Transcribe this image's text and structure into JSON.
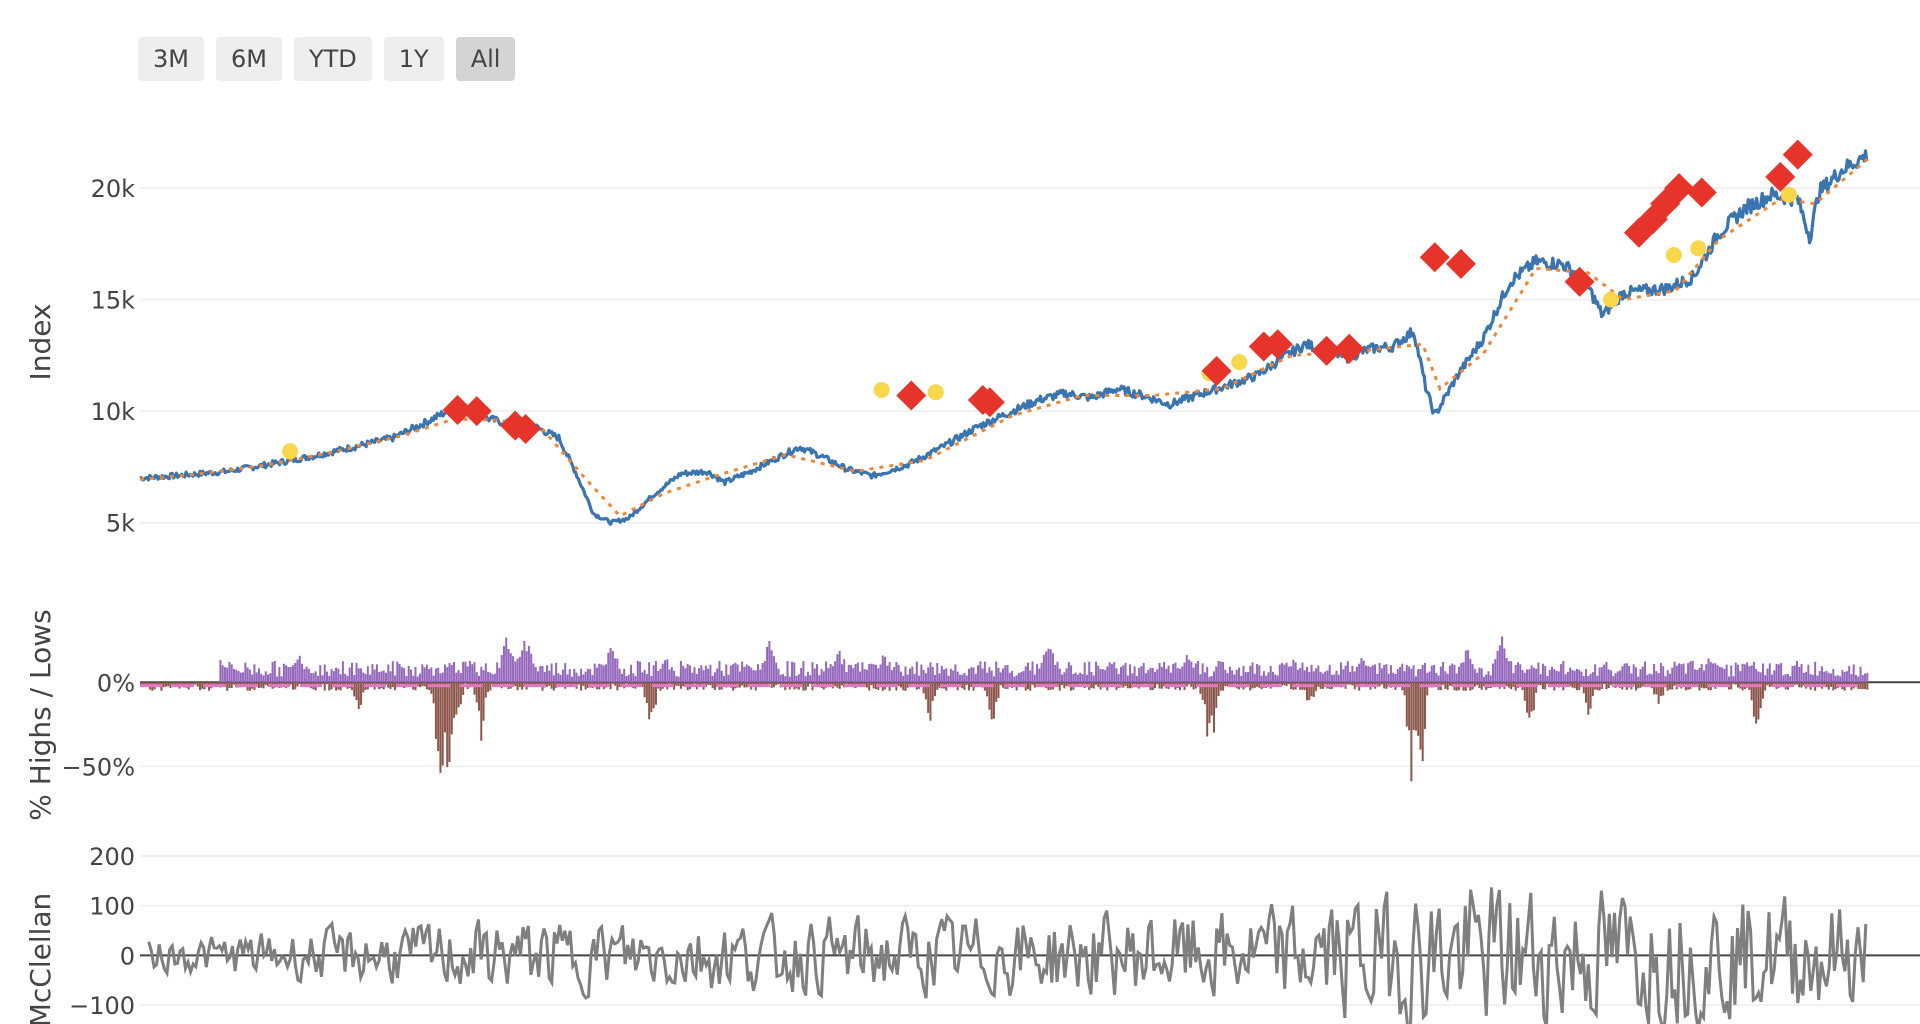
{
  "range_selector": {
    "buttons": [
      {
        "label": "3M",
        "active": false
      },
      {
        "label": "6M",
        "active": false
      },
      {
        "label": "YTD",
        "active": false
      },
      {
        "label": "1Y",
        "active": false
      },
      {
        "label": "All",
        "active": true
      }
    ]
  },
  "colors": {
    "index_line": "#3b75af",
    "trend_line": "#ef8636",
    "sell_marker": "#e6342a",
    "buy_marker": "#f9d74c",
    "new_highs": "#9467bd",
    "new_lows": "#8c564b",
    "zero_dash": "#e377c2",
    "mcclellan": "#7f7f7f",
    "grid": "#eeeeee"
  },
  "chart_data": [
    {
      "type": "line",
      "panel": "index",
      "ylabel": "Index",
      "ylim": [
        4000,
        23500
      ],
      "y_ticks": [
        {
          "v": 5000,
          "label": "5k"
        },
        {
          "v": 10000,
          "label": "10k"
        },
        {
          "v": 15000,
          "label": "15k"
        },
        {
          "v": 20000,
          "label": "20k"
        }
      ],
      "x_range": [
        0,
        1000
      ],
      "series": [
        {
          "key": "index",
          "points": [
            [
              0,
              7000
            ],
            [
              20,
              7100
            ],
            [
              50,
              7300
            ],
            [
              80,
              7700
            ],
            [
              100,
              8000
            ],
            [
              120,
              8350
            ],
            [
              145,
              8800
            ],
            [
              160,
              9350
            ],
            [
              175,
              9950
            ],
            [
              188,
              10050
            ],
            [
              198,
              9700
            ],
            [
              210,
              9450
            ],
            [
              225,
              9350
            ],
            [
              240,
              8800
            ],
            [
              250,
              7200
            ],
            [
              260,
              5400
            ],
            [
              270,
              5000
            ],
            [
              280,
              5200
            ],
            [
              295,
              6300
            ],
            [
              310,
              7200
            ],
            [
              325,
              7300
            ],
            [
              335,
              6800
            ],
            [
              350,
              7300
            ],
            [
              365,
              7900
            ],
            [
              378,
              8400
            ],
            [
              390,
              8000
            ],
            [
              405,
              7400
            ],
            [
              420,
              7100
            ],
            [
              440,
              7600
            ],
            [
              460,
              8400
            ],
            [
              480,
              9300
            ],
            [
              500,
              10000
            ],
            [
              515,
              10500
            ],
            [
              530,
              10800
            ],
            [
              545,
              10600
            ],
            [
              560,
              11000
            ],
            [
              575,
              10700
            ],
            [
              590,
              10300
            ],
            [
              605,
              10700
            ],
            [
              625,
              11200
            ],
            [
              640,
              11600
            ],
            [
              655,
              12400
            ],
            [
              668,
              13000
            ],
            [
              680,
              12700
            ],
            [
              692,
              12400
            ],
            [
              705,
              12800
            ],
            [
              718,
              12900
            ],
            [
              730,
              13600
            ],
            [
              737,
              11000
            ],
            [
              742,
              9800
            ],
            [
              755,
              11600
            ],
            [
              770,
              13300
            ],
            [
              785,
              15800
            ],
            [
              800,
              16700
            ],
            [
              815,
              16600
            ],
            [
              828,
              15900
            ],
            [
              838,
              14300
            ],
            [
              850,
              15300
            ],
            [
              862,
              15400
            ],
            [
              875,
              15500
            ],
            [
              890,
              16000
            ],
            [
              905,
              18000
            ],
            [
              920,
              19100
            ],
            [
              935,
              19700
            ],
            [
              950,
              19500
            ],
            [
              957,
              17800
            ],
            [
              962,
              19800
            ],
            [
              975,
              20800
            ],
            [
              990,
              21500
            ]
          ]
        },
        {
          "key": "trend",
          "points": [
            [
              0,
              6950
            ],
            [
              30,
              7150
            ],
            [
              70,
              7550
            ],
            [
              110,
              8150
            ],
            [
              150,
              8900
            ],
            [
              180,
              9650
            ],
            [
              205,
              9600
            ],
            [
              230,
              9250
            ],
            [
              255,
              7000
            ],
            [
              275,
              5300
            ],
            [
              300,
              6300
            ],
            [
              330,
              7100
            ],
            [
              370,
              8050
            ],
            [
              410,
              7300
            ],
            [
              450,
              7800
            ],
            [
              500,
              9800
            ],
            [
              540,
              10700
            ],
            [
              580,
              10700
            ],
            [
              620,
              11000
            ],
            [
              660,
              12500
            ],
            [
              700,
              12700
            ],
            [
              735,
              13000
            ],
            [
              745,
              11000
            ],
            [
              770,
              12600
            ],
            [
              800,
              16400
            ],
            [
              830,
              16200
            ],
            [
              850,
              15000
            ],
            [
              880,
              15400
            ],
            [
              905,
              17700
            ],
            [
              940,
              19500
            ],
            [
              960,
              19300
            ],
            [
              990,
              21300
            ]
          ]
        }
      ],
      "markers": {
        "sell": [
          [
            182,
            10050
          ],
          [
            193,
            10000
          ],
          [
            215,
            9350
          ],
          [
            221,
            9200
          ],
          [
            442,
            10700
          ],
          [
            483,
            10500
          ],
          [
            487,
            10400
          ],
          [
            617,
            11800
          ],
          [
            644,
            12900
          ],
          [
            652,
            13000
          ],
          [
            680,
            12700
          ],
          [
            693,
            12800
          ],
          [
            742,
            16900
          ],
          [
            757,
            16600
          ],
          [
            825,
            15800
          ],
          [
            859,
            18000
          ],
          [
            867,
            18600
          ],
          [
            874,
            19300
          ],
          [
            882,
            20000
          ],
          [
            895,
            19800
          ],
          [
            940,
            20500
          ],
          [
            950,
            21500
          ]
        ],
        "buy": [
          [
            86,
            8200
          ],
          [
            425,
            10950
          ],
          [
            456,
            10850
          ],
          [
            613,
            11700
          ],
          [
            630,
            12200
          ],
          [
            843,
            15000
          ],
          [
            879,
            17000
          ],
          [
            893,
            17300
          ],
          [
            945,
            19700
          ]
        ]
      }
    },
    {
      "type": "bar",
      "panel": "highs_lows",
      "ylabel": "% Highs / Lows",
      "ylim": [
        -70,
        40
      ],
      "y_ticks": [
        {
          "v": 0,
          "label": "0%"
        },
        {
          "v": -50,
          "label": "−50%"
        }
      ],
      "series": [
        {
          "name": "new highs",
          "range": [
            45,
            990
          ],
          "baseline": 8,
          "spikes": [
            [
              45,
              20
            ],
            [
              90,
              18
            ],
            [
              210,
              30
            ],
            [
              220,
              35
            ],
            [
              270,
              25
            ],
            [
              300,
              18
            ],
            [
              360,
              25
            ],
            [
              400,
              22
            ],
            [
              425,
              20
            ],
            [
              520,
              28
            ],
            [
              600,
              18
            ],
            [
              660,
              15
            ],
            [
              700,
              20
            ],
            [
              760,
              22
            ],
            [
              780,
              30
            ],
            [
              850,
              15
            ],
            [
              900,
              20
            ],
            [
              920,
              18
            ]
          ]
        },
        {
          "name": "new lows",
          "range": [
            0,
            990
          ],
          "baseline": -3,
          "spikes": [
            [
              125,
              -20
            ],
            [
              170,
              -45
            ],
            [
              172,
              -62
            ],
            [
              176,
              -60
            ],
            [
              181,
              -35
            ],
            [
              195,
              -38
            ],
            [
              292,
              -38
            ],
            [
              452,
              -32
            ],
            [
              488,
              -30
            ],
            [
              611,
              -35
            ],
            [
              614,
              -40
            ],
            [
              670,
              -18
            ],
            [
              728,
              -60
            ],
            [
              733,
              -68
            ],
            [
              796,
              -35
            ],
            [
              830,
              -24
            ],
            [
              870,
              -20
            ],
            [
              926,
              -35
            ]
          ]
        },
        {
          "name": "zero line",
          "dash_y": -2
        }
      ]
    },
    {
      "type": "line",
      "panel": "mcclellan",
      "ylabel": "McClellan",
      "ylim": [
        -150,
        220
      ],
      "y_ticks": [
        {
          "v": 200,
          "label": "200"
        },
        {
          "v": 100,
          "label": "100"
        },
        {
          "v": 0,
          "label": "0"
        },
        {
          "v": -100,
          "label": "−100"
        }
      ],
      "series": [
        {
          "name": "oscillator",
          "amplitude_profile": [
            [
              0,
              30
            ],
            [
              45,
              40
            ],
            [
              200,
              70
            ],
            [
              300,
              70
            ],
            [
              500,
              80
            ],
            [
              640,
              90
            ],
            [
              700,
              130
            ],
            [
              760,
              150
            ],
            [
              880,
              130
            ],
            [
              1000,
              110
            ]
          ]
        }
      ]
    }
  ]
}
